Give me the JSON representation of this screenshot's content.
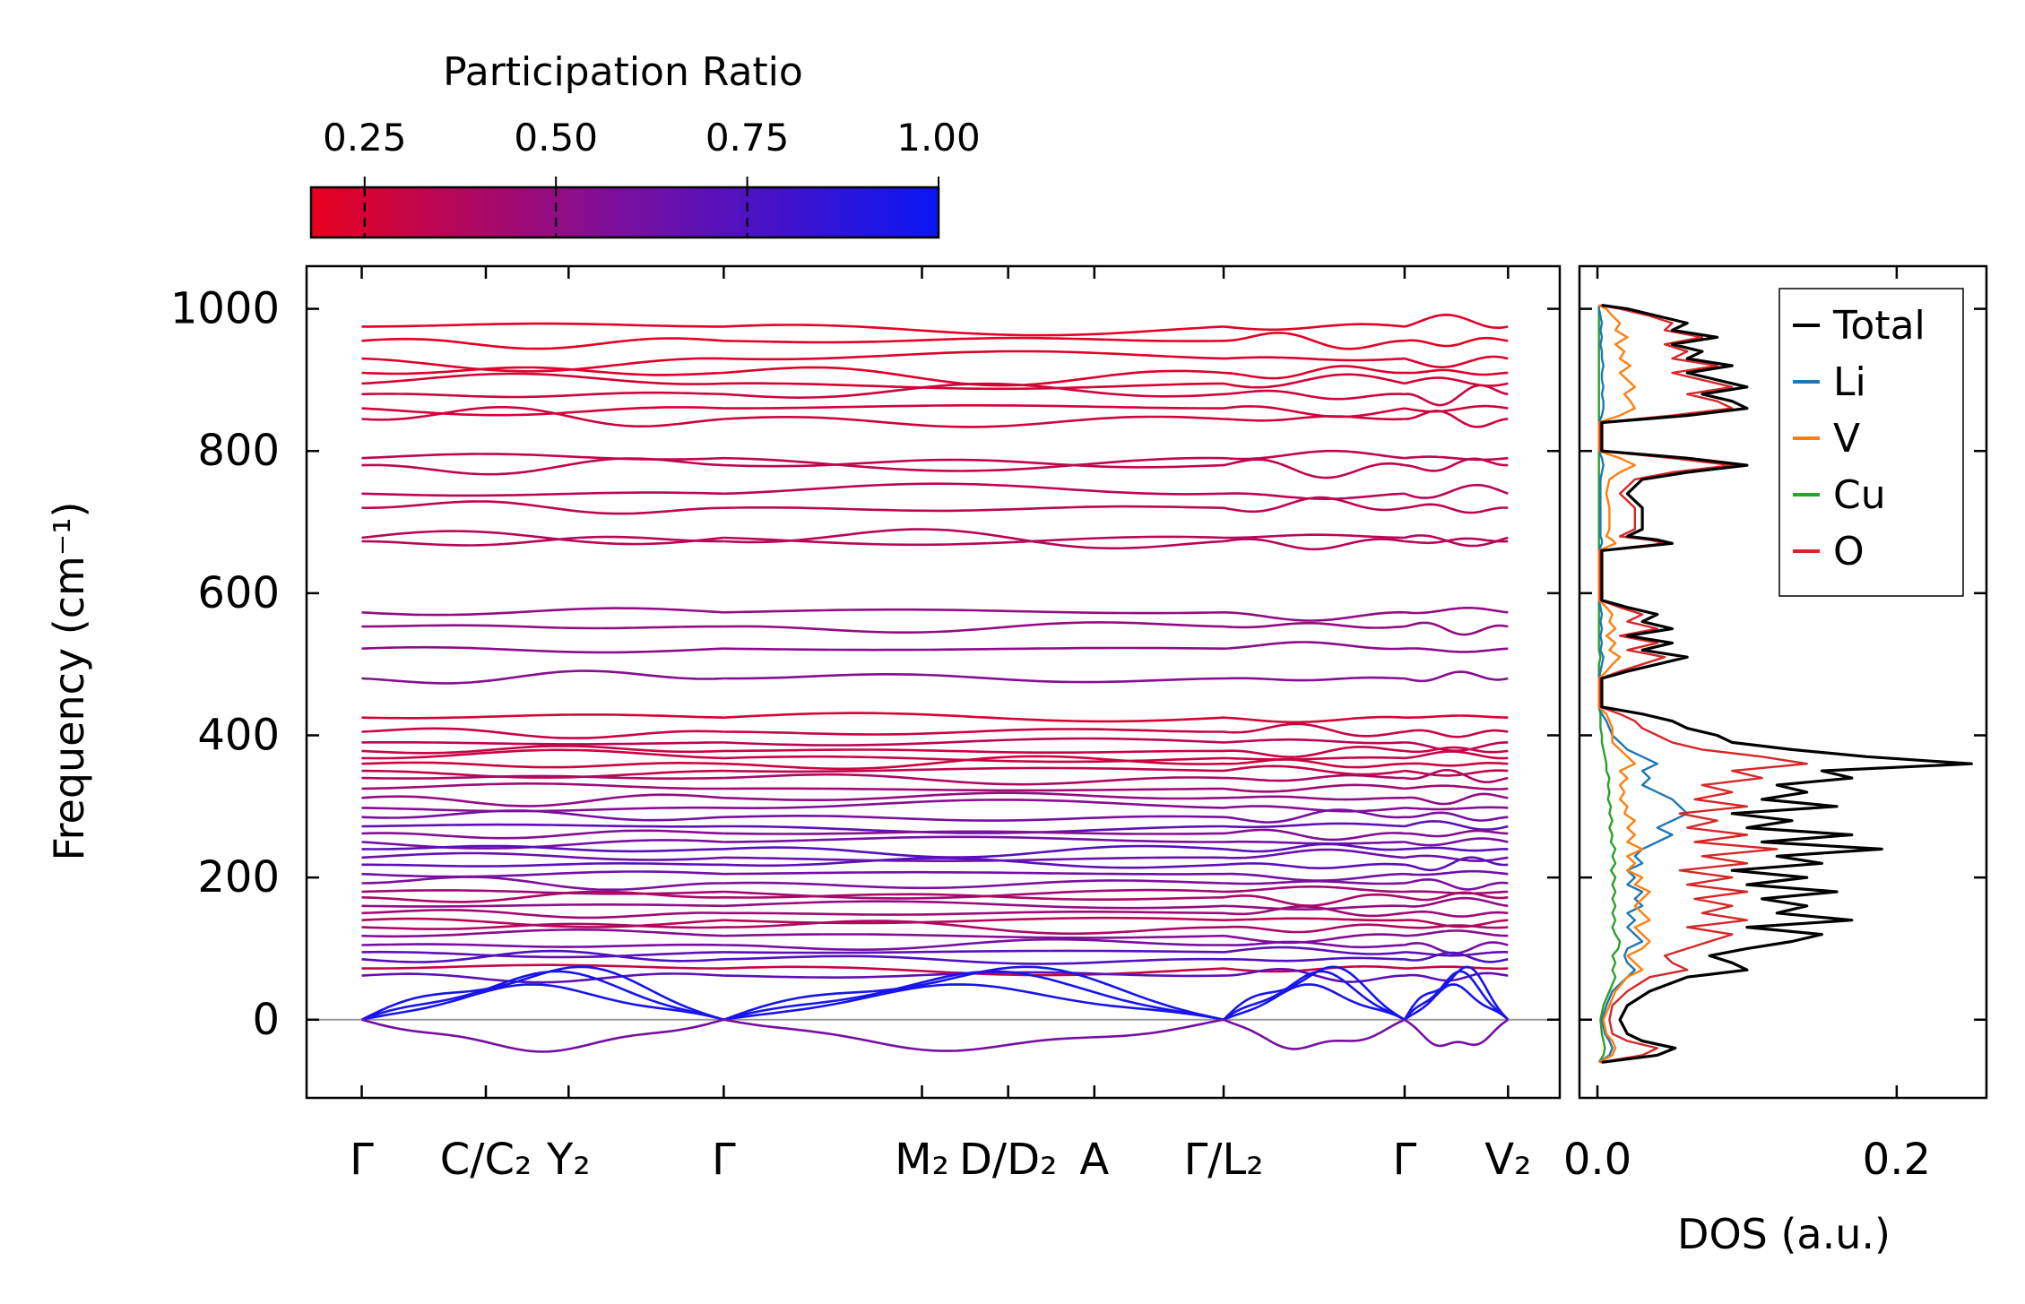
{
  "colors": {
    "low": "#e8001e",
    "mid": "#7a0fa0",
    "high": "#0a16f5",
    "total": "#000000",
    "li": "#1f77b4",
    "v": "#ff7f0e",
    "cu": "#2ca02c",
    "o": "#d62728"
  },
  "colorbar": {
    "title": "Participation Ratio",
    "range": [
      0.18,
      1.0
    ],
    "ticks": [
      "0.25",
      "0.50",
      "0.75",
      "1.00"
    ],
    "tick_values": [
      0.25,
      0.5,
      0.75,
      1.0
    ]
  },
  "chart_data": [
    {
      "type": "line",
      "name": "phonon-band-structure",
      "ylabel": "Frequency (cm⁻¹)",
      "ylim": [
        -110,
        1060
      ],
      "yticks": [
        "0",
        "200",
        "400",
        "600",
        "800",
        "1000"
      ],
      "ytick_values": [
        0,
        200,
        400,
        600,
        800,
        1000
      ],
      "xlim": [
        -0.32,
        6.95
      ],
      "xticks": [
        {
          "x": 0.0,
          "label": "Γ"
        },
        {
          "x": 0.72,
          "label": "C/C₂"
        },
        {
          "x": 1.2,
          "label": "Y₂"
        },
        {
          "x": 2.1,
          "label": "Γ"
        },
        {
          "x": 3.25,
          "label": "M₂"
        },
        {
          "x": 3.75,
          "label": "D/D₂"
        },
        {
          "x": 4.25,
          "label": "A"
        },
        {
          "x": 5.0,
          "label": "Γ/L₂"
        },
        {
          "x": 6.05,
          "label": "Γ"
        },
        {
          "x": 6.65,
          "label": "V₂"
        }
      ],
      "segments": [
        [
          0.0,
          2.1
        ],
        [
          2.1,
          5.0
        ],
        [
          5.0,
          6.05
        ],
        [
          6.05,
          6.65
        ]
      ],
      "zero_line": 0,
      "bands": [
        {
          "y": 975,
          "pr": 0.2
        },
        {
          "y": 955,
          "pr": 0.2
        },
        {
          "y": 930,
          "pr": 0.22
        },
        {
          "y": 910,
          "pr": 0.22
        },
        {
          "y": 895,
          "pr": 0.25
        },
        {
          "y": 880,
          "pr": 0.28
        },
        {
          "y": 860,
          "pr": 0.27
        },
        {
          "y": 845,
          "pr": 0.28
        },
        {
          "y": 790,
          "pr": 0.33
        },
        {
          "y": 780,
          "pr": 0.33
        },
        {
          "y": 740,
          "pr": 0.35
        },
        {
          "y": 720,
          "pr": 0.34
        },
        {
          "y": 678,
          "pr": 0.36
        },
        {
          "y": 673,
          "pr": 0.36
        },
        {
          "y": 573,
          "pr": 0.5
        },
        {
          "y": 553,
          "pr": 0.5
        },
        {
          "y": 522,
          "pr": 0.52
        },
        {
          "y": 480,
          "pr": 0.55
        },
        {
          "y": 425,
          "pr": 0.25
        },
        {
          "y": 405,
          "pr": 0.3
        },
        {
          "y": 390,
          "pr": 0.35
        },
        {
          "y": 378,
          "pr": 0.3
        },
        {
          "y": 368,
          "pr": 0.3
        },
        {
          "y": 360,
          "pr": 0.28
        },
        {
          "y": 350,
          "pr": 0.32
        },
        {
          "y": 340,
          "pr": 0.4
        },
        {
          "y": 325,
          "pr": 0.45
        },
        {
          "y": 312,
          "pr": 0.5
        },
        {
          "y": 298,
          "pr": 0.55
        },
        {
          "y": 285,
          "pr": 0.6
        },
        {
          "y": 272,
          "pr": 0.7
        },
        {
          "y": 262,
          "pr": 0.55
        },
        {
          "y": 250,
          "pr": 0.6
        },
        {
          "y": 240,
          "pr": 0.72
        },
        {
          "y": 228,
          "pr": 0.65
        },
        {
          "y": 218,
          "pr": 0.7
        },
        {
          "y": 205,
          "pr": 0.62
        },
        {
          "y": 192,
          "pr": 0.58
        },
        {
          "y": 180,
          "pr": 0.45
        },
        {
          "y": 172,
          "pr": 0.4
        },
        {
          "y": 160,
          "pr": 0.5
        },
        {
          "y": 150,
          "pr": 0.45
        },
        {
          "y": 140,
          "pr": 0.35
        },
        {
          "y": 130,
          "pr": 0.4
        },
        {
          "y": 118,
          "pr": 0.55
        },
        {
          "y": 105,
          "pr": 0.6
        },
        {
          "y": 95,
          "pr": 0.7
        },
        {
          "y": 85,
          "pr": 0.75
        },
        {
          "y": 72,
          "pr": 0.3
        },
        {
          "y": 62,
          "pr": 0.7
        }
      ],
      "soft_mode": {
        "y": -45,
        "pr": 0.6
      }
    },
    {
      "type": "line",
      "name": "density-of-states",
      "xlabel": "DOS (a.u.)",
      "xlim": [
        -0.012,
        0.26
      ],
      "xticks": [
        "0.0",
        "0.2"
      ],
      "xtick_values": [
        0.0,
        0.2
      ],
      "ylim": [
        -110,
        1060
      ],
      "legend": [
        {
          "key": "total",
          "label": "Total"
        },
        {
          "key": "li",
          "label": "Li"
        },
        {
          "key": "v",
          "label": "V"
        },
        {
          "key": "cu",
          "label": "Cu"
        },
        {
          "key": "o",
          "label": "O"
        }
      ],
      "legend_position": "top-right",
      "frequency_grid": [
        -60,
        -50,
        -40,
        -30,
        -20,
        0,
        20,
        40,
        60,
        70,
        80,
        90,
        100,
        110,
        120,
        130,
        140,
        150,
        160,
        170,
        180,
        190,
        200,
        210,
        220,
        230,
        240,
        250,
        260,
        270,
        280,
        290,
        300,
        310,
        320,
        330,
        340,
        350,
        360,
        370,
        380,
        390,
        400,
        410,
        420,
        430,
        440,
        460,
        480,
        490,
        500,
        510,
        520,
        530,
        540,
        550,
        560,
        570,
        580,
        590,
        600,
        620,
        640,
        660,
        670,
        675,
        680,
        690,
        700,
        720,
        740,
        760,
        770,
        780,
        790,
        800,
        820,
        840,
        850,
        860,
        870,
        880,
        890,
        900,
        910,
        920,
        930,
        940,
        950,
        960,
        970,
        980,
        990,
        1000,
        1005
      ],
      "series": [
        {
          "key": "total",
          "values": [
            0.003,
            0.04,
            0.052,
            0.03,
            0.02,
            0.015,
            0.02,
            0.035,
            0.06,
            0.1,
            0.09,
            0.075,
            0.1,
            0.13,
            0.15,
            0.1,
            0.17,
            0.12,
            0.14,
            0.11,
            0.16,
            0.1,
            0.14,
            0.09,
            0.15,
            0.12,
            0.19,
            0.11,
            0.17,
            0.1,
            0.13,
            0.09,
            0.16,
            0.11,
            0.14,
            0.12,
            0.17,
            0.15,
            0.25,
            0.18,
            0.13,
            0.09,
            0.08,
            0.06,
            0.05,
            0.03,
            0.003,
            0.003,
            0.003,
            0.02,
            0.04,
            0.06,
            0.03,
            0.05,
            0.02,
            0.05,
            0.03,
            0.04,
            0.02,
            0.003,
            0.003,
            0.003,
            0.003,
            0.003,
            0.05,
            0.04,
            0.02,
            0.03,
            0.03,
            0.03,
            0.02,
            0.03,
            0.06,
            0.1,
            0.06,
            0.003,
            0.003,
            0.003,
            0.06,
            0.1,
            0.09,
            0.07,
            0.1,
            0.08,
            0.06,
            0.09,
            0.06,
            0.07,
            0.05,
            0.08,
            0.05,
            0.06,
            0.04,
            0.02,
            0.003
          ]
        },
        {
          "key": "o",
          "values": [
            0.002,
            0.03,
            0.04,
            0.02,
            0.01,
            0.008,
            0.01,
            0.02,
            0.035,
            0.06,
            0.05,
            0.045,
            0.06,
            0.075,
            0.09,
            0.06,
            0.1,
            0.07,
            0.09,
            0.065,
            0.1,
            0.06,
            0.09,
            0.055,
            0.1,
            0.07,
            0.12,
            0.065,
            0.1,
            0.06,
            0.08,
            0.055,
            0.1,
            0.065,
            0.09,
            0.07,
            0.11,
            0.09,
            0.14,
            0.11,
            0.07,
            0.05,
            0.04,
            0.03,
            0.025,
            0.015,
            0.002,
            0.002,
            0.002,
            0.015,
            0.03,
            0.045,
            0.02,
            0.04,
            0.015,
            0.04,
            0.02,
            0.03,
            0.015,
            0.002,
            0.002,
            0.002,
            0.002,
            0.002,
            0.045,
            0.035,
            0.015,
            0.025,
            0.025,
            0.025,
            0.015,
            0.025,
            0.05,
            0.09,
            0.05,
            0.002,
            0.002,
            0.002,
            0.05,
            0.09,
            0.08,
            0.06,
            0.09,
            0.07,
            0.05,
            0.08,
            0.05,
            0.06,
            0.045,
            0.07,
            0.045,
            0.05,
            0.035,
            0.015,
            0.002
          ]
        },
        {
          "key": "li",
          "values": [
            0.001,
            0.008,
            0.01,
            0.008,
            0.005,
            0.003,
            0.006,
            0.01,
            0.02,
            0.025,
            0.02,
            0.018,
            0.02,
            0.03,
            0.025,
            0.02,
            0.025,
            0.02,
            0.03,
            0.025,
            0.03,
            0.02,
            0.025,
            0.02,
            0.03,
            0.025,
            0.03,
            0.04,
            0.05,
            0.04,
            0.05,
            0.06,
            0.055,
            0.05,
            0.04,
            0.03,
            0.035,
            0.03,
            0.04,
            0.03,
            0.02,
            0.015,
            0.01,
            0.008,
            0.006,
            0.003,
            0.001,
            0.001,
            0.001,
            0.002,
            0.003,
            0.004,
            0.002,
            0.003,
            0.002,
            0.003,
            0.002,
            0.003,
            0.002,
            0.001,
            0.001,
            0.001,
            0.001,
            0.001,
            0.003,
            0.003,
            0.002,
            0.002,
            0.002,
            0.002,
            0.002,
            0.002,
            0.003,
            0.004,
            0.003,
            0.001,
            0.001,
            0.001,
            0.003,
            0.004,
            0.004,
            0.003,
            0.004,
            0.003,
            0.003,
            0.004,
            0.003,
            0.003,
            0.002,
            0.003,
            0.002,
            0.003,
            0.002,
            0.001,
            0.001
          ]
        },
        {
          "key": "v",
          "values": [
            0.001,
            0.01,
            0.012,
            0.01,
            0.006,
            0.004,
            0.008,
            0.012,
            0.02,
            0.03,
            0.025,
            0.02,
            0.03,
            0.035,
            0.03,
            0.025,
            0.035,
            0.03,
            0.025,
            0.03,
            0.035,
            0.025,
            0.03,
            0.02,
            0.025,
            0.02,
            0.03,
            0.02,
            0.025,
            0.02,
            0.025,
            0.018,
            0.02,
            0.015,
            0.018,
            0.015,
            0.02,
            0.015,
            0.025,
            0.02,
            0.015,
            0.01,
            0.01,
            0.01,
            0.008,
            0.006,
            0.001,
            0.001,
            0.001,
            0.006,
            0.01,
            0.015,
            0.008,
            0.012,
            0.006,
            0.012,
            0.008,
            0.01,
            0.006,
            0.001,
            0.001,
            0.001,
            0.001,
            0.001,
            0.012,
            0.01,
            0.006,
            0.008,
            0.008,
            0.008,
            0.006,
            0.008,
            0.015,
            0.025,
            0.015,
            0.001,
            0.001,
            0.001,
            0.015,
            0.025,
            0.022,
            0.018,
            0.025,
            0.02,
            0.015,
            0.022,
            0.015,
            0.018,
            0.012,
            0.02,
            0.012,
            0.015,
            0.01,
            0.006,
            0.001
          ]
        },
        {
          "key": "cu",
          "values": [
            0.001,
            0.004,
            0.005,
            0.004,
            0.003,
            0.002,
            0.004,
            0.008,
            0.012,
            0.01,
            0.012,
            0.01,
            0.014,
            0.015,
            0.012,
            0.01,
            0.012,
            0.01,
            0.012,
            0.01,
            0.012,
            0.01,
            0.012,
            0.009,
            0.012,
            0.01,
            0.012,
            0.009,
            0.01,
            0.008,
            0.01,
            0.008,
            0.009,
            0.007,
            0.008,
            0.007,
            0.008,
            0.006,
            0.006,
            0.005,
            0.004,
            0.003,
            0.003,
            0.002,
            0.002,
            0.002,
            0.001,
            0.001,
            0.001,
            0.001,
            0.001,
            0.002,
            0.001,
            0.001,
            0.001,
            0.001,
            0.001,
            0.001,
            0.001,
            0.001,
            0.001,
            0.001,
            0.001,
            0.001,
            0.001,
            0.001,
            0.001,
            0.001,
            0.001,
            0.001,
            0.001,
            0.001,
            0.001,
            0.001,
            0.001,
            0.001,
            0.001,
            0.001,
            0.001,
            0.001,
            0.001,
            0.001,
            0.001,
            0.001,
            0.001,
            0.001,
            0.001,
            0.001,
            0.001,
            0.001,
            0.001,
            0.001,
            0.001,
            0.001,
            0.001
          ]
        }
      ]
    }
  ]
}
